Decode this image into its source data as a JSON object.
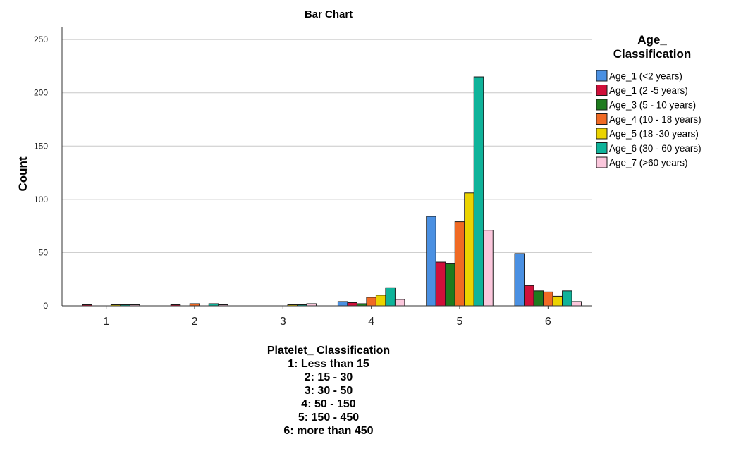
{
  "chart_data": {
    "type": "bar",
    "title": "Bar Chart",
    "ylabel": "Count",
    "xlabel_lines": [
      "Platelet_ Classification",
      "1: Less than 15",
      "2: 15 - 30",
      "3: 30 - 50",
      "4: 50 - 150",
      "5: 150 - 450",
      "6: more than 450"
    ],
    "categories": [
      "1",
      "2",
      "3",
      "4",
      "5",
      "6"
    ],
    "ylim": [
      0,
      262
    ],
    "yticks": [
      0,
      50,
      100,
      150,
      200,
      250
    ],
    "grid": true,
    "legend": {
      "title_lines": [
        "Age_",
        "Classification"
      ],
      "placement": "right"
    },
    "series": [
      {
        "name": "Age_1 (<2 years)",
        "color": "#4a90e2",
        "values": [
          0,
          0,
          0,
          4,
          84,
          49
        ]
      },
      {
        "name": "Age_1 (2 -5  years)",
        "color": "#d0103a",
        "values": [
          1,
          1,
          0,
          3,
          41,
          19
        ]
      },
      {
        "name": "Age_3 (5 - 10 years)",
        "color": "#1e7b1e",
        "values": [
          0,
          0,
          0,
          2,
          40,
          14
        ]
      },
      {
        "name": "Age_4 (10 - 18 years)",
        "color": "#f06a24",
        "values": [
          0,
          2,
          0,
          8,
          79,
          13
        ]
      },
      {
        "name": "Age_5 (18 -30 years)",
        "color": "#ebd300",
        "values": [
          1,
          0,
          1,
          10,
          106,
          9
        ]
      },
      {
        "name": "Age_6 (30 - 60 years)",
        "color": "#0fb39a",
        "values": [
          1,
          2,
          1,
          17,
          215,
          14
        ]
      },
      {
        "name": "Age_7 (>60 years)",
        "color": "#fbc7dc",
        "values": [
          1,
          1,
          2,
          6,
          71,
          4
        ]
      }
    ]
  }
}
